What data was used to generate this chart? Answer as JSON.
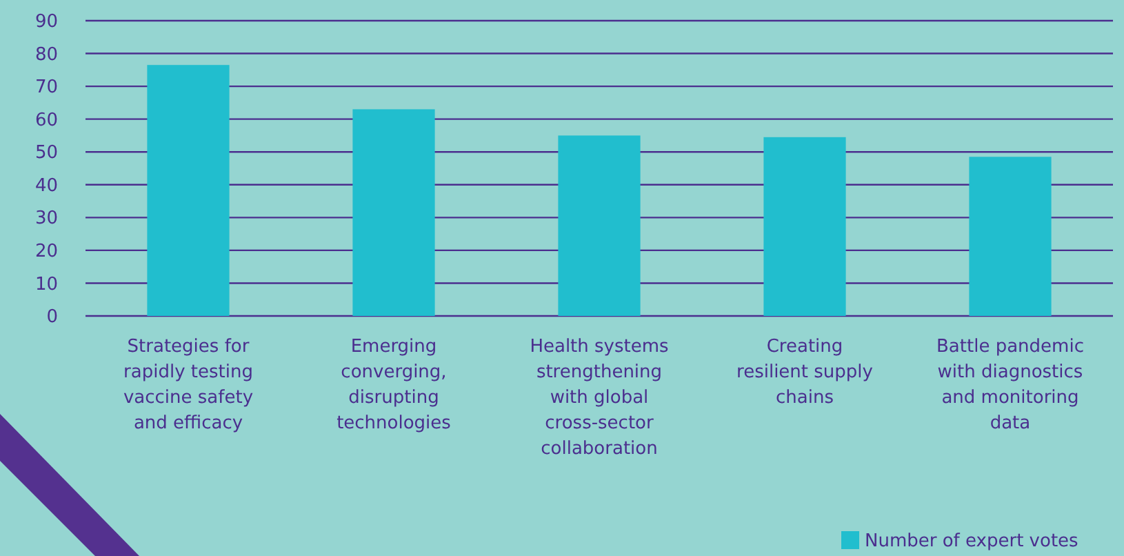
{
  "chart_data": {
    "type": "bar",
    "categories": [
      "Strategies for rapidly testing vaccine safety and efficacy",
      "Emerging converging, disrupting technologies",
      "Health systems strengthening with global cross-sector collaboration",
      "Creating resilient supply chains",
      "Battle pandemic with diagnostics and monitoring data"
    ],
    "series": [
      {
        "name": "Number of expert votes",
        "color": "#21bece",
        "values": [
          76.5,
          63,
          55,
          54.5,
          48.5
        ]
      }
    ],
    "ylim": [
      0,
      90
    ],
    "yticks": [
      0,
      10,
      20,
      30,
      40,
      50,
      60,
      70,
      80,
      90
    ],
    "grid": "y",
    "legend": "bottom right"
  }
}
